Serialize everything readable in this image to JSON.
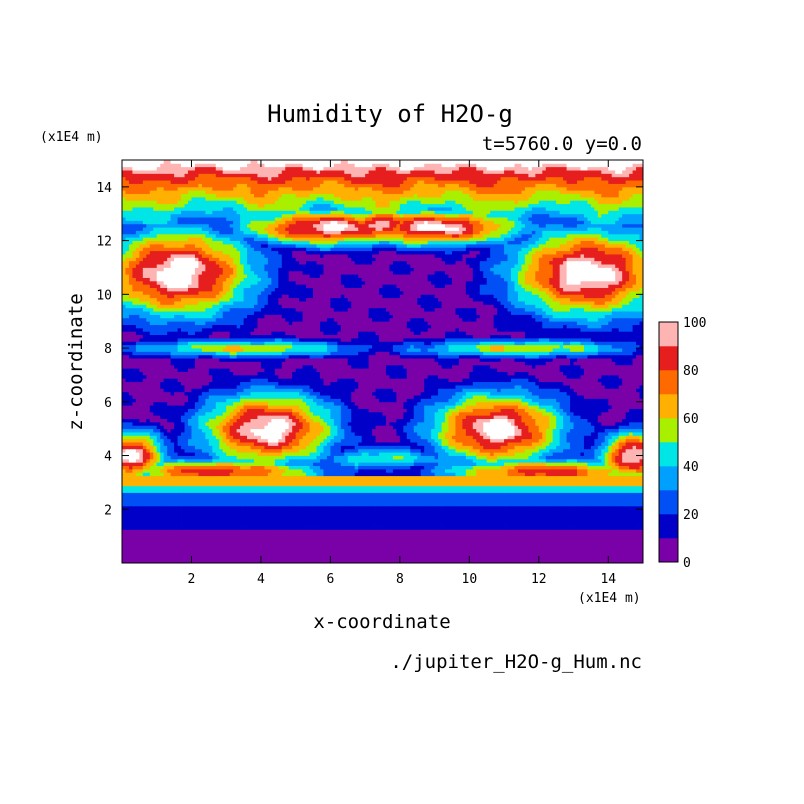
{
  "chart_data": {
    "type": "heatmap",
    "title": "Humidity of H2O-g",
    "subtitle": "t=5760.0 y=0.0",
    "xlabel": "x-coordinate",
    "ylabel": "z-coordinate",
    "x_scale_label": "(x1E4 m)",
    "y_scale_label": "(x1E4 m)",
    "xlim": [
      0,
      15
    ],
    "ylim": [
      0,
      15
    ],
    "x_ticks": [
      "2",
      "4",
      "6",
      "8",
      "10",
      "12",
      "14"
    ],
    "y_ticks": [
      "2",
      "4",
      "6",
      "8",
      "10",
      "12",
      "14"
    ],
    "colorbar": {
      "range": [
        0,
        100
      ],
      "step": 10,
      "tick_labels": [
        "0",
        "20",
        "40",
        "60",
        "80",
        "100"
      ],
      "colors": [
        "#7a00a8",
        "#0000c8",
        "#0050f5",
        "#00a0ff",
        "#00e6e6",
        "#a8f000",
        "#ffb000",
        "#ff6a00",
        "#e61e1e",
        "#ffb4b4"
      ]
    },
    "source_file": "./jupiter_H2O-g_Hum.nc"
  }
}
